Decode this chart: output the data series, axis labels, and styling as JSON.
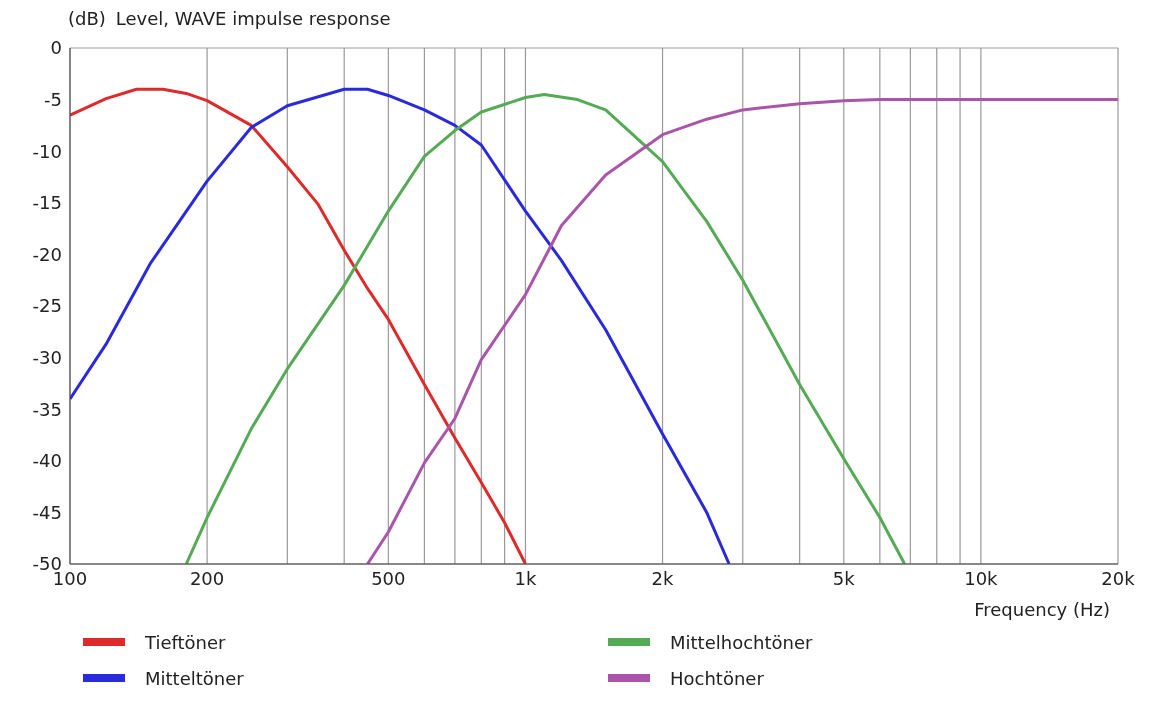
{
  "chart_data": {
    "type": "line",
    "title": "Level, WAVE impulse response",
    "ylabel": "(dB)",
    "xlabel": "Frequency  (Hz)",
    "log": "x",
    "grid": true,
    "legend": "bottom",
    "line_style": "solid",
    "marker": "none",
    "xlim": [
      100,
      20000
    ],
    "ylim": [
      -50,
      0
    ],
    "xticks": [
      100,
      200,
      {
        "value": 300,
        "label": null
      },
      {
        "value": 400,
        "label": null
      },
      500,
      {
        "value": 600,
        "label": null
      },
      {
        "value": 700,
        "label": null
      },
      {
        "value": 800,
        "label": null
      },
      {
        "value": 900,
        "label": null
      },
      {
        "value": 1000,
        "label": "1k"
      },
      {
        "value": 2000,
        "label": "2k"
      },
      {
        "value": 3000,
        "label": null
      },
      {
        "value": 4000,
        "label": null
      },
      {
        "value": 5000,
        "label": "5k"
      },
      {
        "value": 6000,
        "label": null
      },
      {
        "value": 7000,
        "label": null
      },
      {
        "value": 8000,
        "label": null
      },
      {
        "value": 9000,
        "label": null
      },
      {
        "value": 10000,
        "label": "10k"
      },
      {
        "value": 20000,
        "label": "20k"
      }
    ],
    "yticks": [
      0,
      -5,
      -10,
      -15,
      -20,
      -25,
      -30,
      -35,
      -40,
      -45,
      -50
    ],
    "series": [
      {
        "name": "Tieftöner",
        "color": "#dd2a2a",
        "x": [
          100,
          120,
          140,
          160,
          180,
          200,
          250,
          300,
          350,
          400,
          450,
          500,
          600,
          700,
          800,
          900,
          1000
        ],
        "values": [
          -6.5,
          -4.9,
          -4.0,
          -4.0,
          -4.4,
          -5.1,
          -7.5,
          -11.5,
          -15.1,
          -19.6,
          -23.3,
          -26.3,
          -32.6,
          -37.8,
          -42.1,
          -46,
          -50
        ]
      },
      {
        "name": "Mitteltöner",
        "color": "#2a2add",
        "x": [
          100,
          120,
          150,
          200,
          250,
          300,
          400,
          450,
          500,
          600,
          700,
          800,
          1000,
          1200,
          1500,
          2000,
          2500,
          2800
        ],
        "values": [
          -34,
          -28.7,
          -20.9,
          -12.9,
          -7.7,
          -5.6,
          -4.0,
          -4.0,
          -4.6,
          -6.0,
          -7.5,
          -9.4,
          -15.8,
          -20.6,
          -27.3,
          -37.4,
          -45,
          -50
        ]
      },
      {
        "name": "Mittelhochtöner",
        "color": "#55aa55",
        "x": [
          180,
          200,
          250,
          300,
          400,
          500,
          600,
          700,
          800,
          1000,
          1100,
          1300,
          1500,
          2000,
          2500,
          3000,
          4000,
          5000,
          6000,
          6800
        ],
        "values": [
          -50,
          -45.5,
          -36.9,
          -31.1,
          -23,
          -15.8,
          -10.5,
          -8,
          -6.2,
          -4.8,
          -4.5,
          -5,
          -6,
          -11,
          -16.8,
          -22.5,
          -32.6,
          -39.8,
          -45.5,
          -50
        ]
      },
      {
        "name": "Hochtöner",
        "color": "#aa55aa",
        "x": [
          450,
          500,
          600,
          700,
          800,
          1000,
          1200,
          1500,
          2000,
          2500,
          3000,
          4000,
          5000,
          6000,
          10000,
          20000
        ],
        "values": [
          -50,
          -46.9,
          -40.2,
          -35.9,
          -30.2,
          -23.9,
          -17.2,
          -12.3,
          -8.4,
          -6.9,
          -6,
          -5.4,
          -5.1,
          -5,
          -5,
          -5
        ]
      }
    ]
  }
}
